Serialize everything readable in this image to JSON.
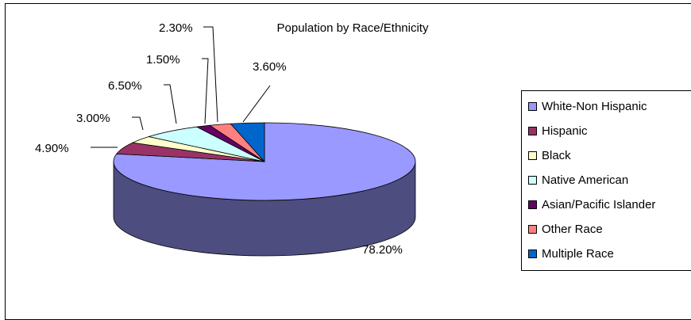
{
  "chart_data": {
    "type": "pie",
    "title": "Population by Race/Ethnicity",
    "slices": [
      {
        "name": "White-Non Hispanic",
        "value": 78.2,
        "label": "78.20%",
        "color": "#9999ff",
        "side": "#4d4d80"
      },
      {
        "name": "Hispanic",
        "value": 4.9,
        "label": "4.90%",
        "color": "#993366",
        "side": "#4d1a33"
      },
      {
        "name": "Black",
        "value": 3.0,
        "label": "3.00%",
        "color": "#ffffcc",
        "side": "#808066"
      },
      {
        "name": "Native American",
        "value": 6.5,
        "label": "6.50%",
        "color": "#ccffff",
        "side": "#668080"
      },
      {
        "name": "Asian/Pacific Islander",
        "value": 1.5,
        "label": "1.50%",
        "color": "#660066",
        "side": "#330033"
      },
      {
        "name": "Other Race",
        "value": 2.3,
        "label": "2.30%",
        "color": "#ff8080",
        "side": "#804040"
      },
      {
        "name": "Multiple Race",
        "value": 3.6,
        "label": "3.60%",
        "color": "#0066cc",
        "side": "#003366"
      }
    ],
    "legend_position": "right",
    "style": "3d"
  }
}
